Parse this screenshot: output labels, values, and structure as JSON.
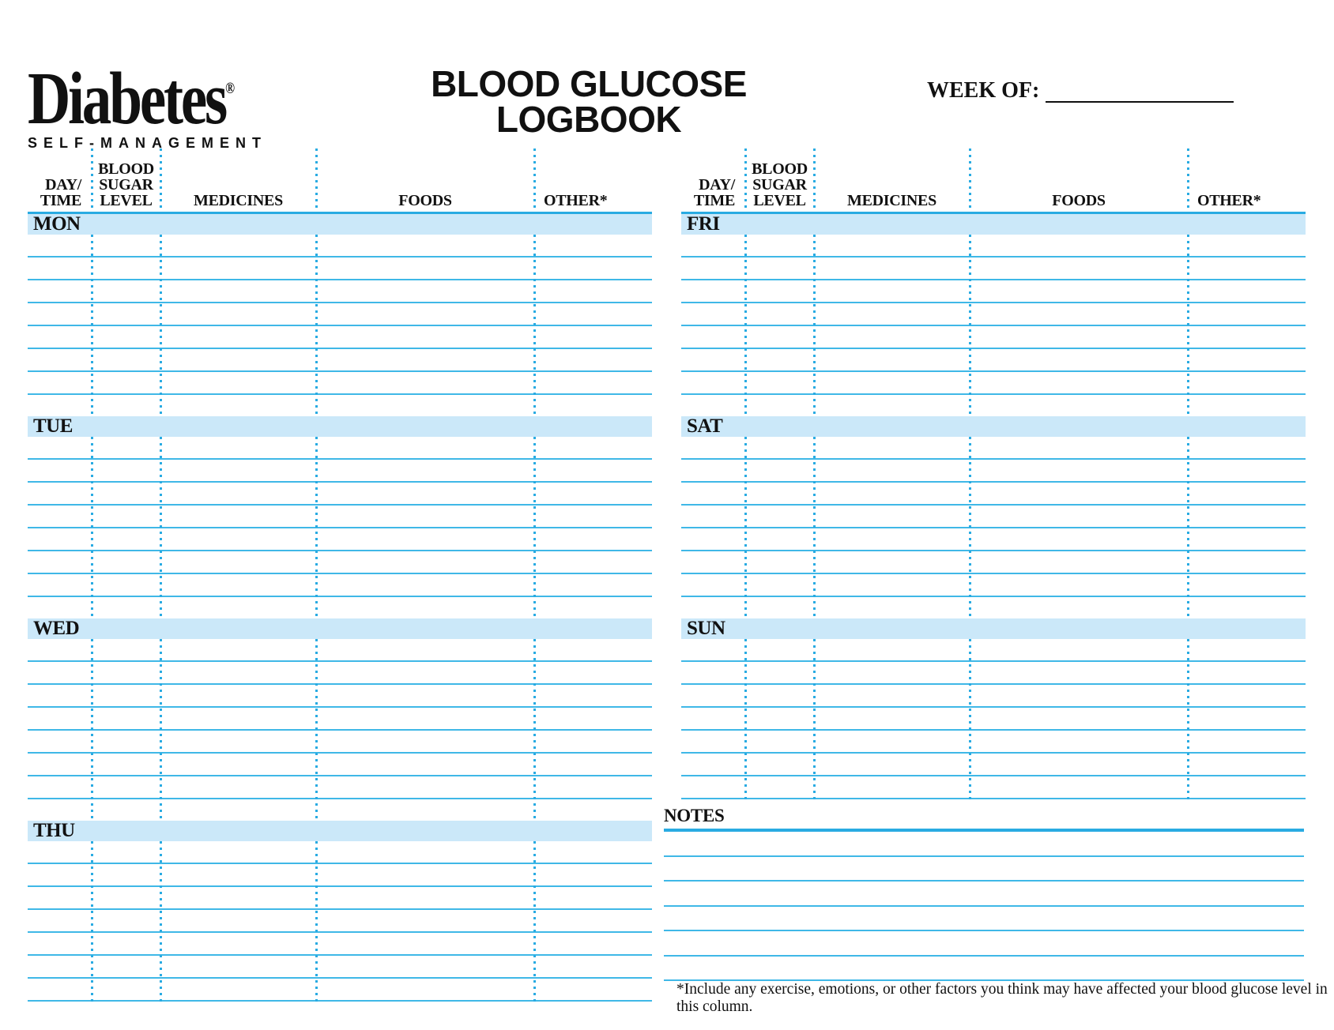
{
  "logo": {
    "wordmark": "Diabetes",
    "registered": "®",
    "subtitle": "SELF-MANAGEMENT"
  },
  "header": {
    "title_line1": "BLOOD GLUCOSE",
    "title_line2": "LOGBOOK",
    "week_of_label": "WEEK OF:",
    "week_of_value": ""
  },
  "columns": [
    {
      "id": "day-time",
      "label_lines": [
        "DAY/",
        "TIME"
      ],
      "align": "right"
    },
    {
      "id": "blood-sugar-level",
      "label_lines": [
        "BLOOD",
        "SUGAR",
        "LEVEL"
      ],
      "align": "center"
    },
    {
      "id": "medicines",
      "label_lines": [
        "MEDICINES"
      ],
      "align": "center"
    },
    {
      "id": "foods",
      "label_lines": [
        "FOODS"
      ],
      "align": "center"
    },
    {
      "id": "other",
      "label_lines": [
        "OTHER*"
      ],
      "align": "left"
    }
  ],
  "tables": [
    {
      "id": "left",
      "days": [
        {
          "label": "MON",
          "rows": 8,
          "end_line": false
        },
        {
          "label": "TUE",
          "rows": 8,
          "end_line": false
        },
        {
          "label": "WED",
          "rows": 8,
          "end_line": false
        },
        {
          "label": "THU",
          "rows": 7,
          "end_line": true
        }
      ]
    },
    {
      "id": "right",
      "days": [
        {
          "label": "FRI",
          "rows": 8,
          "end_line": false
        },
        {
          "label": "SAT",
          "rows": 8,
          "end_line": false
        },
        {
          "label": "SUN",
          "rows": 7,
          "end_line": true
        }
      ]
    }
  ],
  "notes": {
    "label": "NOTES",
    "blank_lines": 6
  },
  "footnote": "*Include any exercise, emotions, or other factors you think may have affected your blood glucose level in this column.",
  "colors": {
    "accent": "#29ABE2",
    "row_line": "#3FB8E7",
    "bar_fill": "#CBE8F9",
    "text": "#111111"
  }
}
